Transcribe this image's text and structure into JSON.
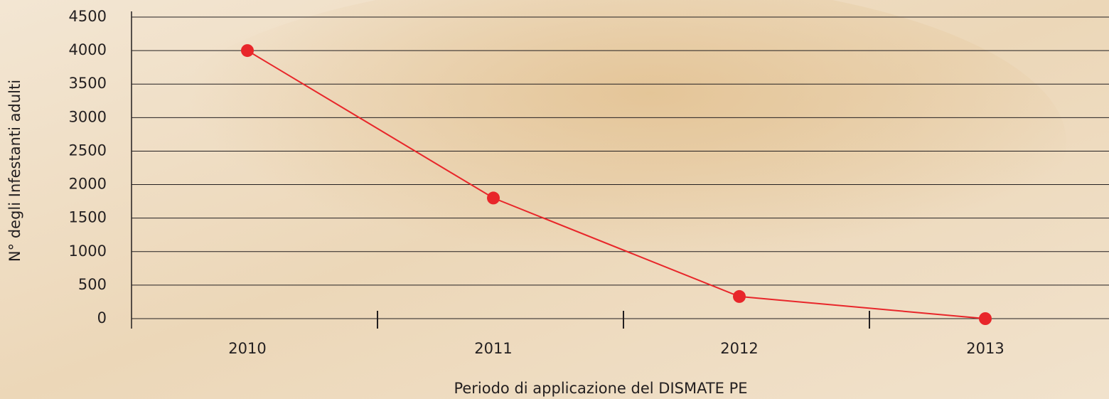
{
  "chart_data": {
    "type": "line",
    "categories": [
      "2010",
      "2011",
      "2012",
      "2013"
    ],
    "series": [
      {
        "name": "N° degli Infestanti adulti",
        "color": "#e8262a",
        "values": [
          4000,
          1800,
          330,
          0
        ]
      }
    ],
    "y_label": "N° degli Infestanti adulti",
    "x_label": "Periodo di applicazione del DISMATE PE",
    "ylim": [
      0,
      4500
    ],
    "yticks": [
      0,
      500,
      1000,
      1500,
      2000,
      2500,
      3000,
      3500,
      4000,
      4500
    ],
    "grid": true
  }
}
